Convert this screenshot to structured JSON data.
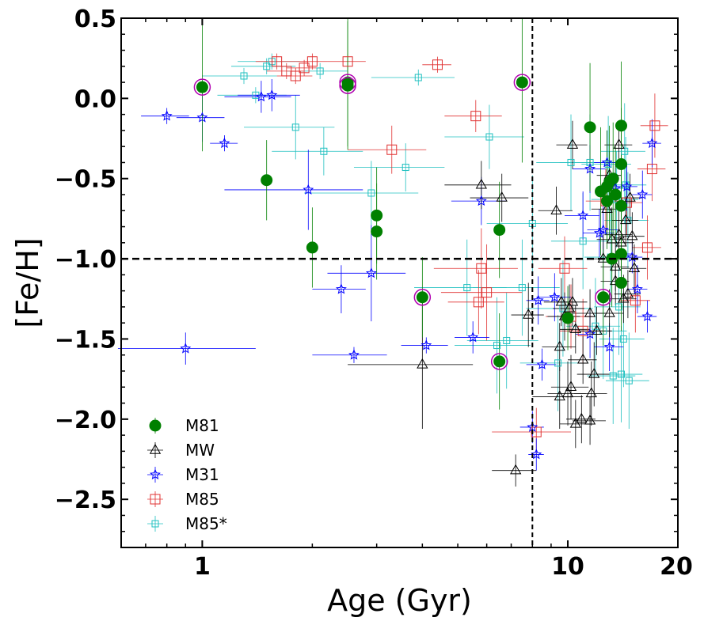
{
  "chart_data": {
    "type": "scatter",
    "xlabel": "Age (Gyr)",
    "ylabel": "[Fe/H]",
    "xscale": "log",
    "xlim": [
      0.6,
      20
    ],
    "ylim": [
      -2.8,
      0.5
    ],
    "x_ticks": [
      {
        "value": 1,
        "label": "1"
      },
      {
        "value": 10,
        "label": "10"
      },
      {
        "value": 20,
        "label": "20"
      }
    ],
    "y_ticks": [
      {
        "value": 0.5,
        "label": "0.5"
      },
      {
        "value": 0.0,
        "label": "0.0"
      },
      {
        "value": -0.5,
        "label": "−0.5"
      },
      {
        "value": -1.0,
        "label": "−1.0"
      },
      {
        "value": -1.5,
        "label": "−1.5"
      },
      {
        "value": -2.0,
        "label": "−2.0"
      },
      {
        "value": -2.5,
        "label": "−2.5"
      }
    ],
    "reference_lines": {
      "age_vertical": 8,
      "feh_horizontal": -1.0
    },
    "legend_position": "lower-left",
    "series": [
      {
        "name": "M81",
        "marker": "circle-filled",
        "color": "#008000",
        "points": [
          [
            1.0,
            0.07,
            0,
            0.4,
            1
          ],
          [
            1.5,
            -0.51,
            0,
            0.25,
            0
          ],
          [
            2.5,
            0.1,
            0,
            0.4,
            1
          ],
          [
            2.5,
            0.08,
            0,
            0.4,
            1
          ],
          [
            2.0,
            -0.93,
            0,
            0.25,
            0
          ],
          [
            3.0,
            -0.73,
            0,
            0.3,
            0
          ],
          [
            3.0,
            -0.83,
            0,
            0.3,
            0
          ],
          [
            4.0,
            -1.24,
            0,
            0.25,
            1
          ],
          [
            6.5,
            -0.82,
            0,
            0.3,
            0
          ],
          [
            6.5,
            -1.64,
            0,
            0.3,
            1
          ],
          [
            7.5,
            0.1,
            0,
            0.5,
            1
          ],
          [
            10.0,
            -1.37,
            0,
            0.2,
            0
          ],
          [
            11.5,
            -0.18,
            0,
            0.4,
            0
          ],
          [
            12.5,
            -1.24,
            0,
            0.3,
            1
          ],
          [
            12.3,
            -0.58,
            0,
            0.4,
            0
          ],
          [
            12.8,
            -0.55,
            0,
            0.35,
            0
          ],
          [
            13.0,
            -0.52,
            0,
            0.35,
            0
          ],
          [
            13.3,
            -0.5,
            0,
            0.35,
            0
          ],
          [
            13.5,
            -0.6,
            0,
            0.3,
            0
          ],
          [
            13.2,
            -1.0,
            0,
            0.3,
            0
          ],
          [
            14.0,
            -0.17,
            0,
            0.4,
            0
          ],
          [
            14.0,
            -0.41,
            0,
            0.35,
            0
          ],
          [
            14.0,
            -0.67,
            0,
            0.35,
            0
          ],
          [
            14.0,
            -0.97,
            0,
            0.3,
            0
          ],
          [
            14.0,
            -1.15,
            0,
            0.3,
            0
          ],
          [
            12.8,
            -0.64,
            0,
            0.3,
            0
          ]
        ]
      },
      {
        "name": "MW",
        "marker": "triangle-open",
        "color": "#000000",
        "points": [
          [
            4.0,
            -1.66,
            1.5,
            0.4
          ],
          [
            5.8,
            -0.54,
            1.2,
            0.15
          ],
          [
            6.6,
            -0.62,
            1.2,
            0.15
          ],
          [
            7.8,
            -1.35,
            0.8,
            0.2
          ],
          [
            9.3,
            -0.7,
            1.0,
            0.15
          ],
          [
            7.2,
            -2.32,
            1.0,
            0.1
          ],
          [
            9.5,
            -1.86,
            1.5,
            0.2
          ],
          [
            9.6,
            -1.27,
            1.0,
            0.15
          ],
          [
            9.8,
            -1.36,
            1.0,
            0.15
          ],
          [
            10.0,
            -1.84,
            1.2,
            0.2
          ],
          [
            10.1,
            -1.31,
            1.0,
            0.15
          ],
          [
            10.3,
            -0.29,
            1.0,
            0.15
          ],
          [
            10.3,
            -1.27,
            1.0,
            0.15
          ],
          [
            10.2,
            -1.8,
            1.2,
            0.2
          ],
          [
            10.5,
            -2.03,
            1.0,
            0.15
          ],
          [
            10.9,
            -2.0,
            1.0,
            0.15
          ],
          [
            11.0,
            -1.63,
            1.0,
            0.15
          ],
          [
            11.5,
            -1.34,
            1.2,
            0.15
          ],
          [
            11.6,
            -1.84,
            1.2,
            0.2
          ],
          [
            11.8,
            -1.72,
            1.2,
            0.2
          ],
          [
            11.5,
            -2.01,
            1.2,
            0.15
          ],
          [
            12.0,
            -1.45,
            1.2,
            0.15
          ],
          [
            12.8,
            -0.69,
            1.2,
            0.15
          ],
          [
            13.0,
            -1.34,
            1.2,
            0.15
          ],
          [
            13.2,
            -0.88,
            1.2,
            0.2
          ],
          [
            13.5,
            -1.05,
            1.2,
            0.15
          ],
          [
            13.5,
            -1.14,
            1.2,
            0.15
          ],
          [
            13.8,
            -0.29,
            1.2,
            0.15
          ],
          [
            13.8,
            -0.85,
            1.2,
            0.2
          ],
          [
            14.0,
            -0.9,
            1.2,
            0.15
          ],
          [
            14.2,
            -1.25,
            1.2,
            0.15
          ],
          [
            14.4,
            -0.76,
            1.2,
            0.15
          ],
          [
            14.6,
            -1.22,
            1.2,
            0.15
          ],
          [
            14.8,
            -0.62,
            1.2,
            0.15
          ],
          [
            15.0,
            -0.86,
            1.2,
            0.15
          ],
          [
            15.2,
            -1.06,
            1.2,
            0.15
          ],
          [
            13.0,
            -0.48,
            1.0,
            0.15
          ],
          [
            12.5,
            -1.0,
            1.0,
            0.15
          ],
          [
            10.5,
            -1.44,
            1.0,
            0.15
          ],
          [
            9.5,
            -1.55,
            1.0,
            0.15
          ]
        ]
      },
      {
        "name": "M31",
        "marker": "star-open",
        "color": "#0000ff",
        "points": [
          [
            0.8,
            -0.11,
            0.12,
            0.05
          ],
          [
            1.0,
            -0.12,
            0.15,
            0.15
          ],
          [
            1.15,
            -0.28,
            0.1,
            0.05
          ],
          [
            1.45,
            0.01,
            0.3,
            0.1
          ],
          [
            1.55,
            0.02,
            0.3,
            0.1
          ],
          [
            1.95,
            -0.57,
            0.8,
            0.25
          ],
          [
            2.9,
            -1.09,
            0.7,
            0.3
          ],
          [
            2.4,
            -1.19,
            0.4,
            0.15
          ],
          [
            2.6,
            -1.6,
            0.6,
            0.05
          ],
          [
            4.1,
            -1.54,
            0.6,
            0.05
          ],
          [
            0.9,
            -1.56,
            0.5,
            0.1
          ],
          [
            5.8,
            -0.64,
            1.0,
            0.15
          ],
          [
            5.5,
            -1.49,
            0.6,
            0.1
          ],
          [
            8.0,
            -2.05,
            0.6,
            0.1
          ],
          [
            8.2,
            -2.22,
            0.4,
            0.1
          ],
          [
            8.3,
            -1.26,
            0.6,
            0.15
          ],
          [
            8.5,
            -1.66,
            0.8,
            0.1
          ],
          [
            9.2,
            -1.24,
            1.0,
            0.15
          ],
          [
            11.0,
            -0.73,
            1.2,
            0.15
          ],
          [
            11.5,
            -0.44,
            1.2,
            0.15
          ],
          [
            11.5,
            -1.47,
            1.0,
            0.15
          ],
          [
            12.2,
            -0.84,
            1.2,
            0.15
          ],
          [
            12.5,
            -0.82,
            1.2,
            0.2
          ],
          [
            13.0,
            -1.55,
            1.2,
            0.15
          ],
          [
            13.5,
            -0.56,
            1.2,
            0.15
          ],
          [
            14.0,
            -0.97,
            1.0,
            0.15
          ],
          [
            15.0,
            -0.99,
            1.0,
            0.1
          ],
          [
            15.5,
            -1.19,
            1.0,
            0.15
          ],
          [
            16.0,
            -0.6,
            1.0,
            0.15
          ],
          [
            16.5,
            -1.36,
            1.0,
            0.1
          ],
          [
            17.0,
            -0.28,
            1.0,
            0.15
          ],
          [
            14.5,
            -0.55,
            1.0,
            0.15
          ],
          [
            12.8,
            -0.4,
            1.0,
            0.2
          ]
        ]
      },
      {
        "name": "M85",
        "marker": "square-open",
        "color": "#e03030",
        "points": [
          [
            1.6,
            0.23,
            0.2,
            0.05
          ],
          [
            1.7,
            0.17,
            0.2,
            0.05
          ],
          [
            1.8,
            0.14,
            0.2,
            0.05
          ],
          [
            1.9,
            0.19,
            0.2,
            0.05
          ],
          [
            2.0,
            0.23,
            0.2,
            0.05
          ],
          [
            2.5,
            0.23,
            0.3,
            0.05
          ],
          [
            4.4,
            0.21,
            0.4,
            0.05
          ],
          [
            3.3,
            -0.32,
            0.8,
            0.15
          ],
          [
            5.6,
            -0.11,
            1.0,
            0.1
          ],
          [
            5.8,
            -1.06,
            1.5,
            0.25
          ],
          [
            5.7,
            -1.27,
            1.0,
            0.2
          ],
          [
            6.0,
            -1.21,
            1.5,
            0.3
          ],
          [
            8.2,
            -2.08,
            2.0,
            0.15
          ],
          [
            9.8,
            -1.06,
            1.5,
            0.2
          ],
          [
            10.2,
            -1.36,
            1.5,
            0.2
          ],
          [
            12.7,
            -0.64,
            1.5,
            0.2
          ],
          [
            15.3,
            -1.26,
            1.5,
            0.2
          ],
          [
            16.5,
            -0.93,
            1.5,
            0.2
          ],
          [
            17.0,
            -0.44,
            1.5,
            0.2
          ],
          [
            17.3,
            -0.17,
            1.5,
            0.2
          ],
          [
            14.5,
            -0.65,
            1.5,
            0.2
          ],
          [
            11.0,
            -1.45,
            1.5,
            0.2
          ]
        ]
      },
      {
        "name": "M85*",
        "marker": "square-open-small",
        "color": "#20c0c0",
        "points": [
          [
            1.3,
            0.14,
            0.3,
            0.05
          ],
          [
            1.4,
            0.02,
            0.3,
            0.05
          ],
          [
            1.5,
            0.2,
            0.3,
            0.05
          ],
          [
            1.55,
            0.23,
            0.3,
            0.05
          ],
          [
            1.8,
            -0.18,
            0.5,
            0.2
          ],
          [
            2.1,
            0.17,
            0.4,
            0.05
          ],
          [
            2.15,
            -0.33,
            0.6,
            0.15
          ],
          [
            2.9,
            -0.59,
            1.0,
            0.2
          ],
          [
            3.6,
            -0.43,
            1.0,
            0.15
          ],
          [
            3.9,
            0.13,
            1.0,
            0.05
          ],
          [
            5.3,
            -1.18,
            1.5,
            0.3
          ],
          [
            6.1,
            -0.24,
            1.5,
            0.2
          ],
          [
            6.4,
            -1.54,
            1.5,
            0.3
          ],
          [
            6.8,
            -1.51,
            1.5,
            0.3
          ],
          [
            7.5,
            -1.18,
            2.0,
            0.3
          ],
          [
            8.0,
            -0.78,
            2.0,
            0.3
          ],
          [
            9.4,
            -1.65,
            2.0,
            0.3
          ],
          [
            9.7,
            -1.31,
            2.0,
            0.3
          ],
          [
            10.2,
            -0.4,
            2.0,
            0.3
          ],
          [
            11.0,
            -0.89,
            2.0,
            0.3
          ],
          [
            11.5,
            -0.4,
            2.0,
            0.3
          ],
          [
            11.9,
            -1.42,
            2.0,
            0.3
          ],
          [
            12.5,
            -1.45,
            2.0,
            0.3
          ],
          [
            12.9,
            -0.41,
            2.0,
            0.3
          ],
          [
            13.1,
            -0.99,
            2.0,
            0.3
          ],
          [
            13.3,
            -1.73,
            2.0,
            0.3
          ],
          [
            13.6,
            -0.63,
            2.0,
            0.3
          ],
          [
            14.0,
            -1.72,
            2.0,
            0.3
          ],
          [
            14.2,
            -1.5,
            2.0,
            0.3
          ],
          [
            14.4,
            -0.54,
            2.0,
            0.3
          ],
          [
            14.6,
            -0.76,
            2.0,
            0.3
          ],
          [
            14.7,
            -1.76,
            2.0,
            0.3
          ],
          [
            14.3,
            -0.33,
            2.0,
            0.3
          ],
          [
            13.8,
            -1.3,
            2.0,
            0.3
          ]
        ]
      }
    ]
  }
}
